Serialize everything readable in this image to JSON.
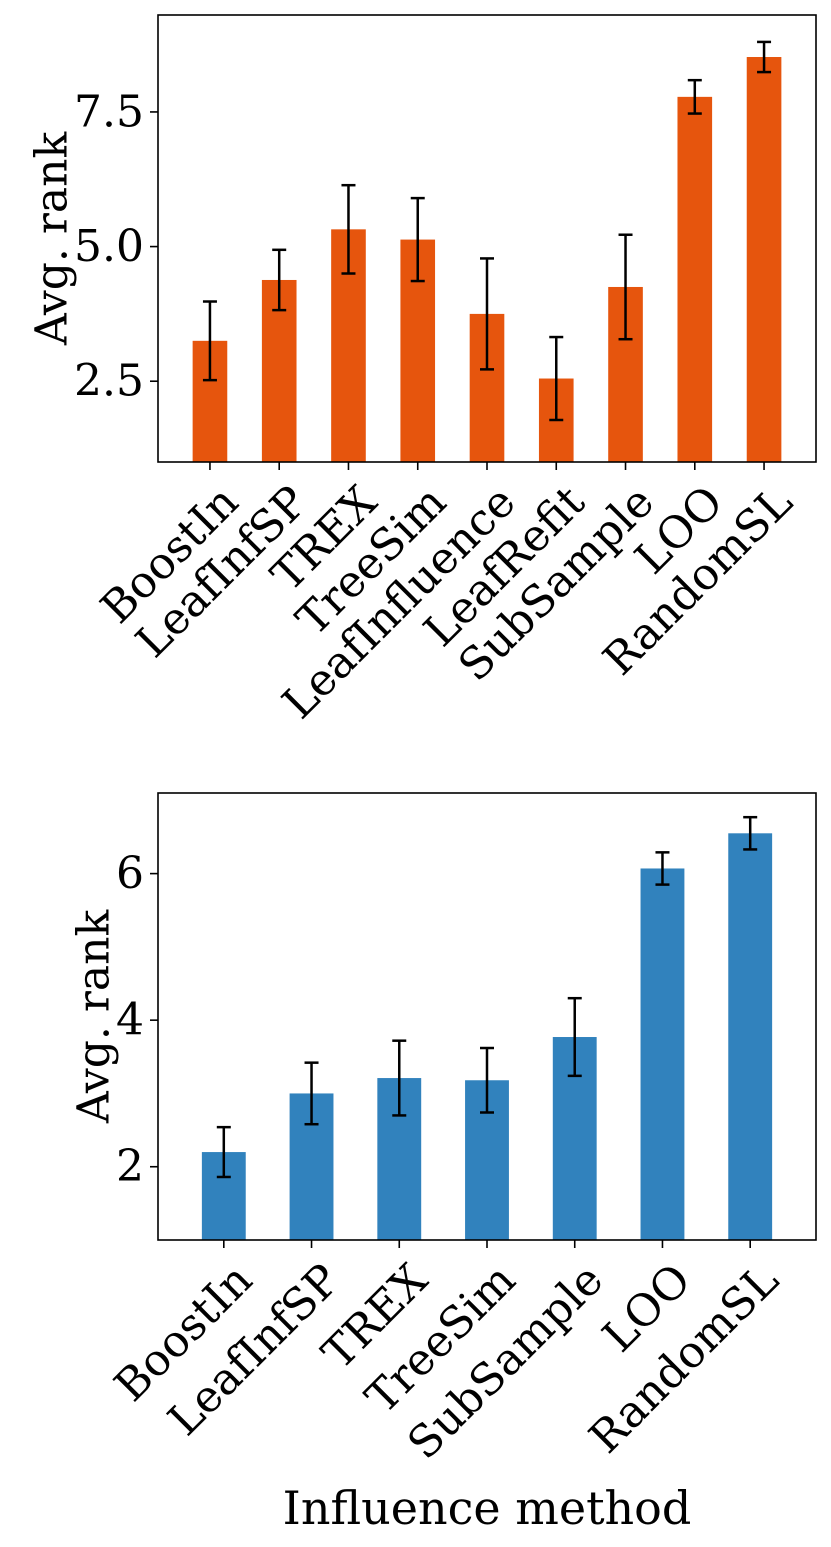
{
  "chart_data": [
    {
      "type": "bar",
      "title": "",
      "xlabel": "",
      "ylabel": "Avg. rank",
      "categories": [
        "BoostIn",
        "LeafInfSP",
        "TREX",
        "TreeSim",
        "LeafInfluence",
        "LeafRefit",
        "SubSample",
        "LOO",
        "RandomSL"
      ],
      "values": [
        3.25,
        4.38,
        5.32,
        5.13,
        3.75,
        2.55,
        4.25,
        7.78,
        8.52
      ],
      "errors": [
        0.73,
        0.56,
        0.82,
        0.77,
        1.03,
        0.77,
        0.97,
        0.31,
        0.28
      ],
      "yticks": [
        2.5,
        5.0,
        7.5
      ],
      "ytick_labels": [
        "2.5",
        "5.0",
        "7.5"
      ],
      "ylim": [
        1.0,
        9.3
      ],
      "grid": false,
      "color": "#e6550d"
    },
    {
      "type": "bar",
      "title": "",
      "xlabel": "Influence method",
      "ylabel": "Avg. rank",
      "categories": [
        "BoostIn",
        "LeafInfSP",
        "TREX",
        "TreeSim",
        "SubSample",
        "LOO",
        "RandomSL"
      ],
      "values": [
        2.2,
        3.0,
        3.21,
        3.18,
        3.77,
        6.07,
        6.55
      ],
      "errors": [
        0.34,
        0.42,
        0.51,
        0.44,
        0.53,
        0.22,
        0.22
      ],
      "yticks": [
        2,
        4,
        6
      ],
      "ytick_labels": [
        "2",
        "4",
        "6"
      ],
      "ylim": [
        1.0,
        7.1
      ],
      "grid": false,
      "color": "#3182bd"
    }
  ]
}
